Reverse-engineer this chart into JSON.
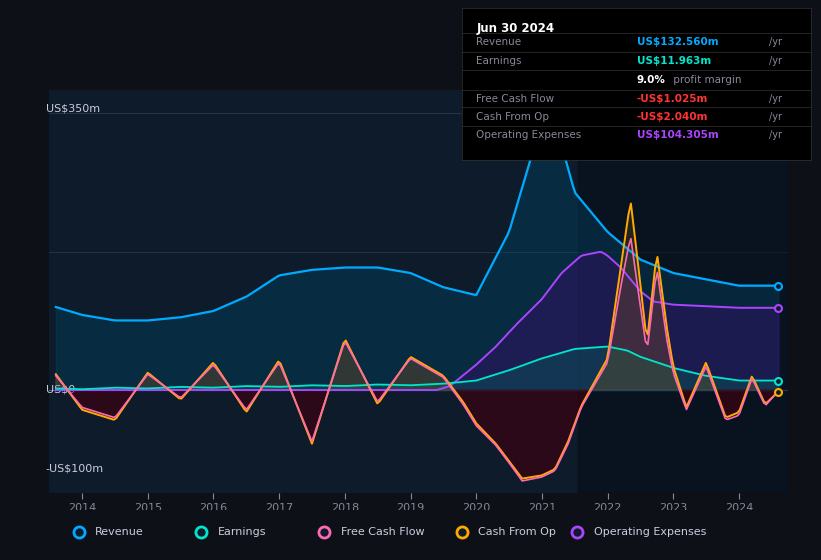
{
  "bg_color": "#0d1117",
  "plot_bg_color": "#0d1b2a",
  "y_label_top": "US$350m",
  "y_label_zero": "US$0",
  "y_label_bottom": "-US$100m",
  "ylim": [
    -130,
    380
  ],
  "xlim_start": 2013.5,
  "xlim_end": 2024.75,
  "xticks": [
    2014,
    2015,
    2016,
    2017,
    2018,
    2019,
    2020,
    2021,
    2022,
    2023,
    2024
  ],
  "revenue_color": "#00aaff",
  "earnings_color": "#00e5cc",
  "fcf_color": "#ff69b4",
  "cashfromop_color": "#ffaa00",
  "opex_color": "#aa44ff",
  "info_box": {
    "date": "Jun 30 2024",
    "revenue_label": "Revenue",
    "revenue_value": "US$132.560m",
    "revenue_color": "#00aaff",
    "earnings_label": "Earnings",
    "earnings_value": "US$11.963m",
    "earnings_color": "#00e5cc",
    "margin_text": "9.0%",
    "fcf_label": "Free Cash Flow",
    "fcf_value": "-US$1.025m",
    "cashfromop_label": "Cash From Op",
    "cashfromop_value": "-US$2.040m",
    "opex_label": "Operating Expenses",
    "opex_value": "US$104.305m",
    "opex_color": "#aa44ff"
  },
  "legend": [
    {
      "label": "Revenue",
      "color": "#00aaff"
    },
    {
      "label": "Earnings",
      "color": "#00e5cc"
    },
    {
      "label": "Free Cash Flow",
      "color": "#ff69b4"
    },
    {
      "label": "Cash From Op",
      "color": "#ffaa00"
    },
    {
      "label": "Operating Expenses",
      "color": "#aa44ff"
    }
  ]
}
